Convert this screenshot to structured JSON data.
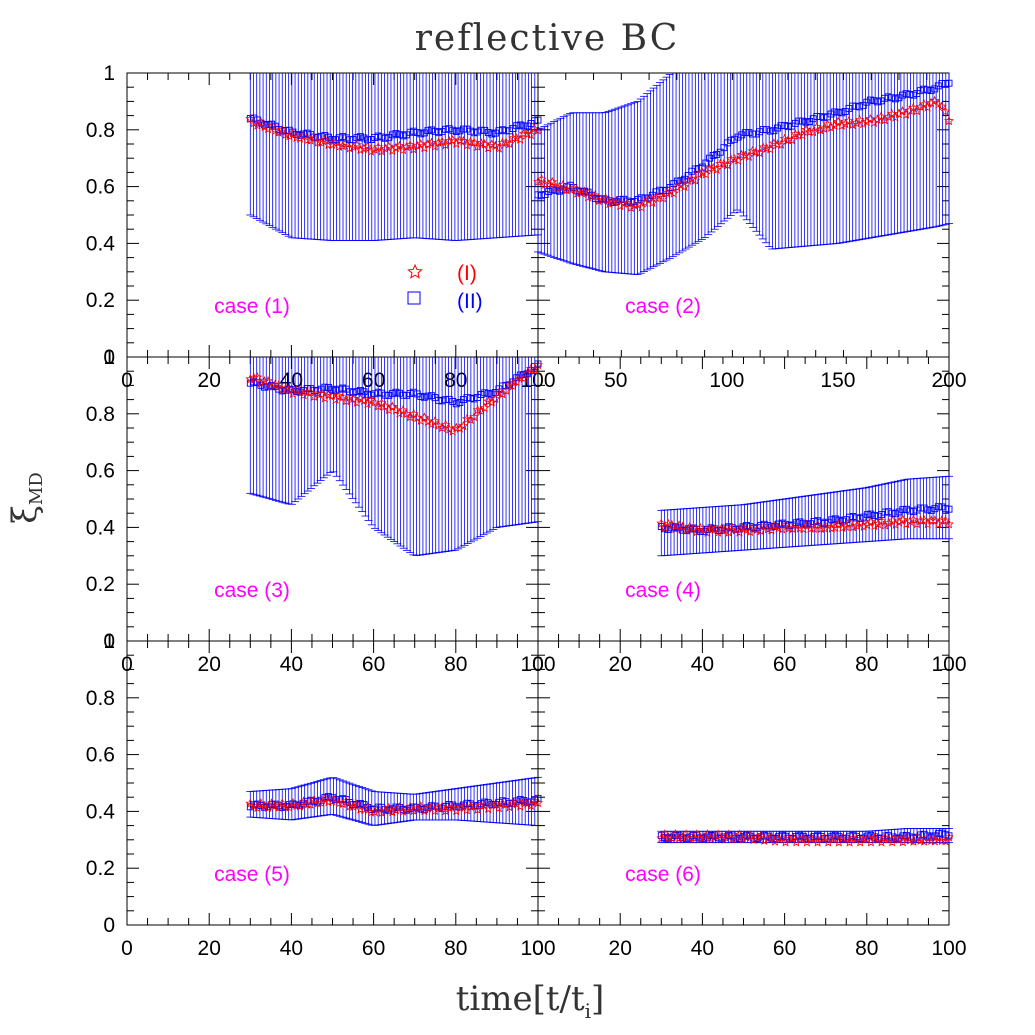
{
  "figure": {
    "title": "reflective BC",
    "xlabel": "time[t/t",
    "xlabel_sub": "i",
    "xlabel_close": "]",
    "ylabel": "ξ",
    "ylabel_sub": "MD"
  },
  "legend": [
    {
      "marker": "star",
      "label": "(I)",
      "color": "#ff0000"
    },
    {
      "marker": "square",
      "label": "(II)",
      "color": "#0000ff"
    }
  ],
  "colors": {
    "series_I": "#ff0000",
    "series_II": "#0000ff",
    "case_label": "#ff00ff"
  },
  "chart_data": [
    {
      "type": "scatter",
      "label": "case (1)",
      "xlim": [
        0,
        100
      ],
      "ylim": [
        0,
        1
      ],
      "xticks": [
        0,
        20,
        40,
        60,
        80,
        100
      ],
      "yticks": [
        0,
        0.2,
        0.4,
        0.6,
        0.8,
        1
      ],
      "x": [
        30,
        40,
        50,
        60,
        70,
        80,
        90,
        100
      ],
      "series": [
        {
          "name": "(I)",
          "marker": "star",
          "values": [
            0.83,
            0.78,
            0.75,
            0.73,
            0.74,
            0.76,
            0.74,
            0.8
          ]
        },
        {
          "name": "(II)",
          "marker": "square",
          "values": [
            0.84,
            0.79,
            0.77,
            0.77,
            0.79,
            0.8,
            0.79,
            0.83
          ],
          "err_low": [
            0.5,
            0.42,
            0.41,
            0.41,
            0.42,
            0.41,
            0.42,
            0.43
          ],
          "err_high": [
            1.0,
            1.0,
            1.0,
            1.0,
            1.0,
            1.0,
            1.0,
            1.0
          ]
        }
      ]
    },
    {
      "type": "scatter",
      "label": "case (2)",
      "xlim": [
        15,
        200
      ],
      "ylim": [
        0,
        1
      ],
      "xticks": [
        50,
        100,
        150,
        200
      ],
      "yticks": [
        0,
        0.2,
        0.4,
        0.6,
        0.8,
        1
      ],
      "x": [
        15,
        30,
        45,
        60,
        75,
        90,
        105,
        120,
        135,
        150,
        165,
        180,
        195,
        200
      ],
      "series": [
        {
          "name": "(I)",
          "marker": "star",
          "values": [
            0.62,
            0.59,
            0.55,
            0.53,
            0.58,
            0.65,
            0.7,
            0.74,
            0.79,
            0.82,
            0.83,
            0.86,
            0.9,
            0.84
          ]
        },
        {
          "name": "(II)",
          "marker": "square",
          "values": [
            0.57,
            0.6,
            0.55,
            0.55,
            0.6,
            0.68,
            0.78,
            0.8,
            0.83,
            0.86,
            0.9,
            0.92,
            0.95,
            0.97
          ],
          "err_low": [
            0.37,
            0.33,
            0.3,
            0.29,
            0.35,
            0.42,
            0.52,
            0.38,
            0.39,
            0.4,
            0.42,
            0.44,
            0.46,
            0.47
          ],
          "err_high": [
            0.8,
            0.86,
            0.86,
            0.9,
            1.0,
            1.0,
            1.0,
            1.0,
            1.0,
            1.0,
            1.0,
            1.0,
            1.0,
            1.0
          ]
        }
      ]
    },
    {
      "type": "scatter",
      "label": "case (3)",
      "xlim": [
        0,
        100
      ],
      "ylim": [
        0,
        1
      ],
      "xticks": [
        0,
        20,
        40,
        60,
        80,
        100
      ],
      "yticks": [
        0,
        0.2,
        0.4,
        0.6,
        0.8,
        1
      ],
      "x": [
        30,
        40,
        50,
        60,
        70,
        80,
        90,
        100
      ],
      "series": [
        {
          "name": "(I)",
          "marker": "star",
          "values": [
            0.93,
            0.88,
            0.86,
            0.84,
            0.79,
            0.74,
            0.86,
            0.97
          ]
        },
        {
          "name": "(II)",
          "marker": "square",
          "values": [
            0.91,
            0.88,
            0.89,
            0.87,
            0.87,
            0.84,
            0.88,
            0.97
          ],
          "err_low": [
            0.52,
            0.48,
            0.6,
            0.4,
            0.3,
            0.32,
            0.4,
            0.42
          ],
          "err_high": [
            1.0,
            1.0,
            1.0,
            1.0,
            1.0,
            1.0,
            1.0,
            1.0
          ]
        }
      ]
    },
    {
      "type": "scatter",
      "label": "case (4)",
      "xlim": [
        0,
        100
      ],
      "ylim": [
        0,
        1
      ],
      "xticks": [
        0,
        20,
        40,
        60,
        80,
        100
      ],
      "yticks": [
        0,
        0.2,
        0.4,
        0.6,
        0.8,
        1
      ],
      "x": [
        30,
        40,
        50,
        60,
        70,
        80,
        90,
        100
      ],
      "series": [
        {
          "name": "(I)",
          "marker": "star",
          "values": [
            0.41,
            0.39,
            0.39,
            0.4,
            0.4,
            0.41,
            0.42,
            0.42
          ]
        },
        {
          "name": "(II)",
          "marker": "square",
          "values": [
            0.4,
            0.39,
            0.4,
            0.41,
            0.42,
            0.44,
            0.46,
            0.47
          ],
          "err_low": [
            0.3,
            0.31,
            0.32,
            0.33,
            0.34,
            0.35,
            0.36,
            0.36
          ],
          "err_high": [
            0.46,
            0.47,
            0.48,
            0.5,
            0.52,
            0.54,
            0.57,
            0.58
          ]
        }
      ]
    },
    {
      "type": "scatter",
      "label": "case (5)",
      "xlim": [
        0,
        100
      ],
      "ylim": [
        0,
        1
      ],
      "xticks": [
        0,
        20,
        40,
        60,
        80,
        100
      ],
      "yticks": [
        0,
        0.2,
        0.4,
        0.6,
        0.8,
        1
      ],
      "x": [
        30,
        40,
        50,
        60,
        70,
        80,
        90,
        100
      ],
      "series": [
        {
          "name": "(I)",
          "marker": "star",
          "values": [
            0.42,
            0.42,
            0.44,
            0.4,
            0.41,
            0.41,
            0.42,
            0.43
          ]
        },
        {
          "name": "(II)",
          "marker": "square",
          "values": [
            0.42,
            0.42,
            0.45,
            0.41,
            0.41,
            0.42,
            0.43,
            0.44
          ],
          "err_low": [
            0.38,
            0.37,
            0.39,
            0.35,
            0.37,
            0.37,
            0.36,
            0.35
          ],
          "err_high": [
            0.47,
            0.48,
            0.52,
            0.47,
            0.46,
            0.48,
            0.5,
            0.52
          ]
        }
      ]
    },
    {
      "type": "scatter",
      "label": "case (6)",
      "xlim": [
        0,
        100
      ],
      "ylim": [
        0,
        1
      ],
      "xticks": [
        0,
        20,
        40,
        60,
        80,
        100
      ],
      "yticks": [
        0,
        0.2,
        0.4,
        0.6,
        0.8,
        1
      ],
      "x": [
        30,
        40,
        50,
        60,
        70,
        80,
        90,
        100
      ],
      "series": [
        {
          "name": "(I)",
          "marker": "star",
          "values": [
            0.31,
            0.31,
            0.31,
            0.3,
            0.3,
            0.3,
            0.3,
            0.3
          ]
        },
        {
          "name": "(II)",
          "marker": "square",
          "values": [
            0.31,
            0.31,
            0.31,
            0.31,
            0.31,
            0.31,
            0.31,
            0.32
          ],
          "err_low": [
            0.29,
            0.29,
            0.29,
            0.29,
            0.29,
            0.29,
            0.29,
            0.29
          ],
          "err_high": [
            0.33,
            0.33,
            0.33,
            0.33,
            0.33,
            0.33,
            0.34,
            0.34
          ]
        }
      ]
    }
  ]
}
